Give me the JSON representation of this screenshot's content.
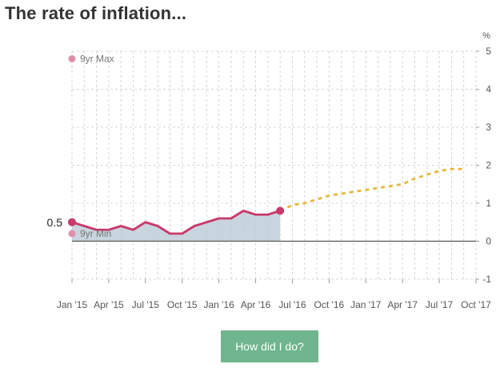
{
  "title": "The rate of inflation...",
  "button_label": "How did I do?",
  "colors": {
    "actual": "#c9396b",
    "forecast": "#e5b83a",
    "area": "#bccbd6",
    "minmax": "#e08fae",
    "grid": "#cccccc",
    "axis": "#555555",
    "button": "#6fb58e"
  },
  "chart_data": {
    "type": "line",
    "y_unit": "%",
    "ylim": [
      -1,
      5
    ],
    "yticks": [
      "-1",
      "0",
      "1",
      "2",
      "3",
      "4",
      "5"
    ],
    "xlim": [
      "2015-01",
      "2017-10"
    ],
    "xticks": [
      "Jan '15",
      "Apr '15",
      "Jul '15",
      "Oct '15",
      "Jan '16",
      "Apr '16",
      "Jul '16",
      "Oct '16",
      "Jan '17",
      "Apr '17",
      "Jul '17",
      "Oct '17"
    ],
    "grid": true,
    "series": [
      {
        "kind": "actual",
        "points": [
          [
            "2015-01",
            0.5
          ],
          [
            "2015-02",
            0.4
          ],
          [
            "2015-03",
            0.3
          ],
          [
            "2015-04",
            0.3
          ],
          [
            "2015-05",
            0.4
          ],
          [
            "2015-06",
            0.3
          ],
          [
            "2015-07",
            0.5
          ],
          [
            "2015-08",
            0.4
          ],
          [
            "2015-09",
            0.2
          ],
          [
            "2015-10",
            0.2
          ],
          [
            "2015-11",
            0.4
          ],
          [
            "2015-12",
            0.5
          ],
          [
            "2016-01",
            0.6
          ],
          [
            "2016-02",
            0.6
          ],
          [
            "2016-03",
            0.8
          ],
          [
            "2016-04",
            0.7
          ],
          [
            "2016-05",
            0.7
          ],
          [
            "2016-06",
            0.8
          ]
        ]
      },
      {
        "kind": "forecast",
        "points": [
          [
            "2016-06",
            0.8
          ],
          [
            "2016-07",
            0.95
          ],
          [
            "2016-08",
            1.0
          ],
          [
            "2016-09",
            1.1
          ],
          [
            "2016-10",
            1.2
          ],
          [
            "2016-11",
            1.25
          ],
          [
            "2016-12",
            1.3
          ],
          [
            "2017-01",
            1.35
          ],
          [
            "2017-02",
            1.4
          ],
          [
            "2017-03",
            1.45
          ],
          [
            "2017-04",
            1.5
          ],
          [
            "2017-05",
            1.65
          ],
          [
            "2017-06",
            1.75
          ],
          [
            "2017-07",
            1.85
          ],
          [
            "2017-08",
            1.9
          ],
          [
            "2017-09",
            1.9
          ]
        ]
      }
    ],
    "start_label": "0.5",
    "annotations": [
      {
        "label": "9yr Max",
        "x": "2015-01",
        "y": 4.8
      },
      {
        "label": "9yr Min",
        "x": "2015-01",
        "y": 0.2
      }
    ]
  }
}
